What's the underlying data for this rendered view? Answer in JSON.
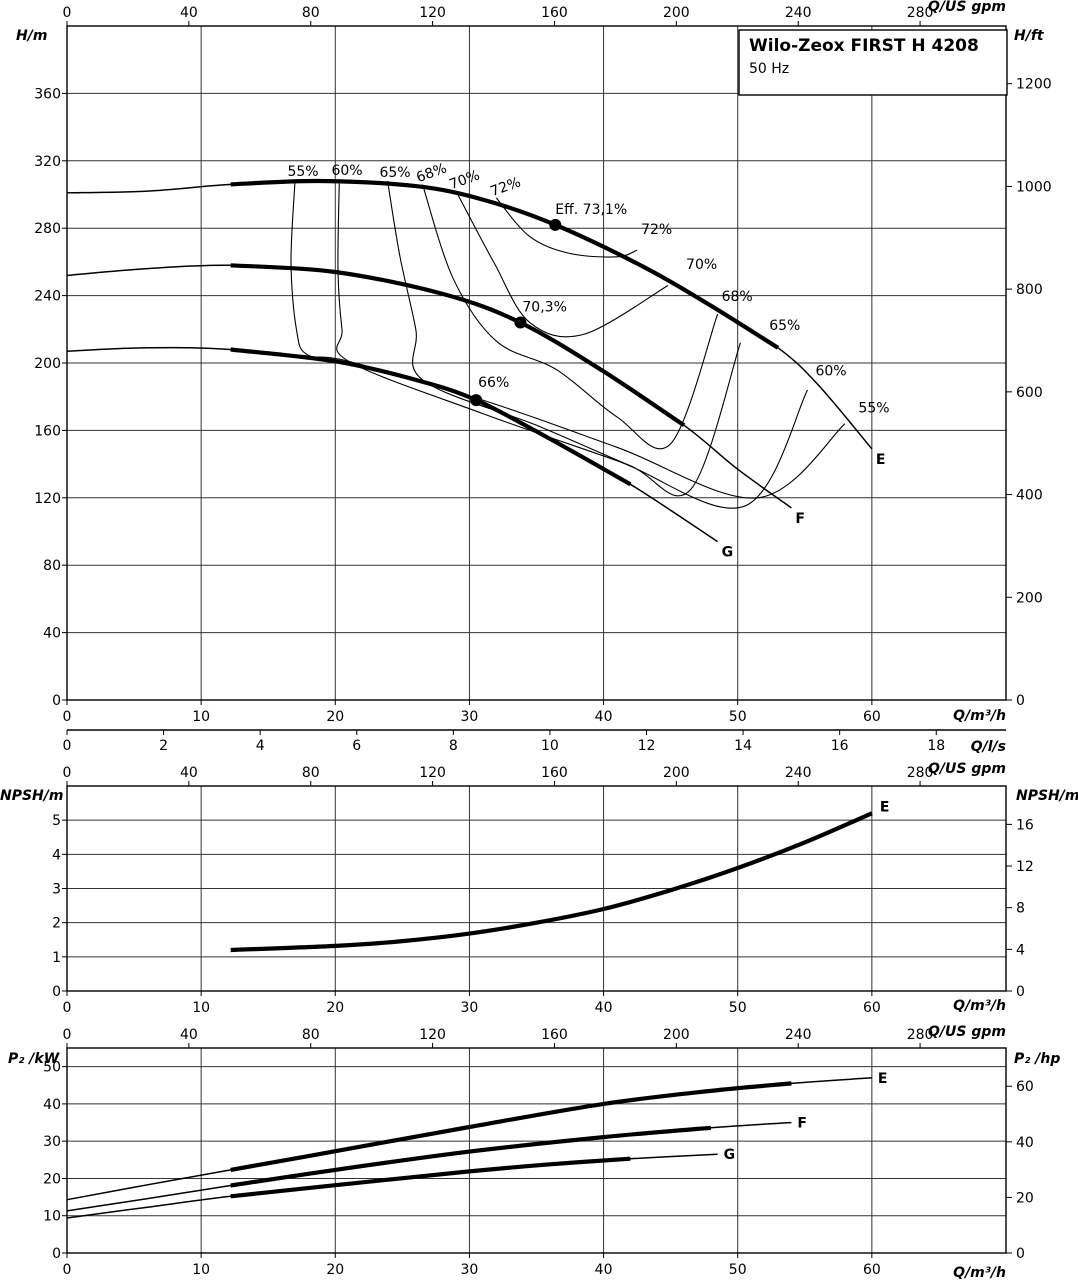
{
  "title": "Wilo-Zeox FIRST H 4208",
  "subtitle": "50 Hz",
  "axes": {
    "q_m3h": "Q/m³/h",
    "q_gpm": "Q/US gpm",
    "q_ls": "Q/l/s",
    "h_m": "H/m",
    "h_ft": "H/ft",
    "npsh_m": "NPSH/m",
    "npsh_ft": "NPSH/m",
    "p2_kw": "P₂ /kW",
    "p2_hp": "P₂ /hp"
  },
  "chart_data": [
    {
      "type": "line",
      "name": "head",
      "xlabel": "Q/m³/h",
      "ylabel": "H/m",
      "xlim": [
        0,
        70
      ],
      "ylim": [
        0,
        400
      ],
      "x_ticks": [
        0,
        10,
        20,
        30,
        40,
        50,
        60
      ],
      "y_ticks": [
        0,
        40,
        80,
        120,
        160,
        200,
        240,
        280,
        320,
        360
      ],
      "top_axis": {
        "label": "Q/US gpm",
        "ticks": [
          0,
          40,
          80,
          120,
          160,
          200,
          240,
          280
        ]
      },
      "bottom2_axis": {
        "label": "Q/l/s",
        "ticks": [
          0,
          2,
          4,
          6,
          8,
          10,
          12,
          14,
          16,
          18
        ]
      },
      "right_axis": {
        "label": "H/ft",
        "ticks": [
          0,
          200,
          400,
          600,
          800,
          1000,
          1200
        ]
      },
      "grid": true,
      "series": [
        {
          "name": "E",
          "x": [
            0,
            6,
            12.2,
            18.8,
            26,
            31,
            36.4,
            43,
            48,
            53,
            56,
            60
          ],
          "y": [
            301,
            302,
            306,
            308,
            305,
            297,
            282,
            257,
            234,
            209,
            187,
            149
          ]
        },
        {
          "name": "F",
          "x": [
            0,
            6,
            12.2,
            20,
            28,
            33.8,
            40,
            46,
            50,
            54
          ],
          "y": [
            252,
            256,
            258,
            254,
            241,
            224,
            195,
            163,
            137,
            114
          ]
        },
        {
          "name": "G",
          "x": [
            0,
            6,
            12.2,
            20,
            26,
            30.5,
            36,
            42,
            48.5
          ],
          "y": [
            207,
            209,
            208,
            201,
            190,
            178,
            155,
            128,
            94
          ]
        }
      ],
      "efficiency_lines": [
        {
          "label": "55%",
          "x": [
            17,
            16.7,
            17.1,
            17.9,
            21,
            31,
            41,
            51.5,
            58
          ],
          "y": [
            308,
            260,
            220,
            205,
            201,
            178,
            150,
            120,
            164
          ]
        },
        {
          "label": "60%",
          "x": [
            20.3,
            20.2,
            20.5,
            21,
            31,
            41,
            50.5,
            55.2
          ],
          "y": [
            308,
            255,
            220,
            201,
            170,
            142,
            115,
            184
          ]
        },
        {
          "label": "65%",
          "x": [
            23.9,
            24.8,
            26,
            26.5,
            35,
            42,
            46.5,
            50.2
          ],
          "y": [
            308,
            264,
            220,
            190,
            163,
            139,
            125,
            212
          ]
        },
        {
          "label": "68%",
          "x": [
            26.5,
            28.8,
            32,
            36.5,
            41,
            45,
            48.5
          ],
          "y": [
            306,
            250,
            213,
            196,
            168,
            152,
            229
          ]
        },
        {
          "label": "70%",
          "x": [
            29,
            31.8,
            34.5,
            38.5,
            44.8
          ],
          "y": [
            302,
            260,
            224,
            217,
            246
          ]
        },
        {
          "label": "72%",
          "x": [
            32,
            34.5,
            37.5,
            41,
            42.5
          ],
          "y": [
            298,
            275,
            265,
            263,
            267
          ]
        }
      ],
      "annotations": [
        {
          "text": "Eff. 73,1%",
          "x": 36.4,
          "y": 282
        },
        {
          "text": "72%",
          "x": 42.5,
          "y": 267
        },
        {
          "text": "70%",
          "x": 46,
          "y": 247
        },
        {
          "text": "68%",
          "x": 48.5,
          "y": 229
        },
        {
          "text": "65%",
          "x": 52.2,
          "y": 212
        },
        {
          "text": "60%",
          "x": 55.5,
          "y": 185
        },
        {
          "text": "55%",
          "x": 58.7,
          "y": 163
        },
        {
          "text": "70,3%",
          "x": 33.8,
          "y": 224
        },
        {
          "text": "66%",
          "x": 30.5,
          "y": 178
        }
      ],
      "op_points": [
        {
          "x": 36.4,
          "y": 282
        },
        {
          "x": 33.8,
          "y": 224
        },
        {
          "x": 30.5,
          "y": 178
        }
      ],
      "top_labels": [
        "55%",
        "60%",
        "65%",
        "68%",
        "70%",
        "72%"
      ]
    },
    {
      "type": "line",
      "name": "npsh",
      "xlabel": "Q/m³/h",
      "ylabel": "NPSH/m",
      "xlim": [
        0,
        70
      ],
      "ylim": [
        0,
        6
      ],
      "x_ticks": [
        0,
        10,
        20,
        30,
        40,
        50,
        60
      ],
      "y_ticks": [
        0,
        1,
        2,
        3,
        4,
        5
      ],
      "top_axis": {
        "label": "Q/US gpm",
        "ticks": [
          0,
          40,
          80,
          120,
          160,
          200,
          240,
          280
        ]
      },
      "right_axis": {
        "label": "NPSH/m",
        "ticks": [
          0,
          4,
          8,
          12,
          16
        ]
      },
      "grid": true,
      "series": [
        {
          "name": "E",
          "x": [
            12.2,
            20,
            25,
            30,
            35,
            40,
            45,
            50,
            55,
            60
          ],
          "y": [
            1.2,
            1.32,
            1.46,
            1.68,
            2.0,
            2.4,
            2.95,
            3.6,
            4.35,
            5.2
          ]
        }
      ]
    },
    {
      "type": "line",
      "name": "power",
      "xlabel": "Q/m³/h",
      "ylabel": "P₂ /kW",
      "xlim": [
        0,
        70
      ],
      "ylim": [
        0,
        55
      ],
      "x_ticks": [
        0,
        10,
        20,
        30,
        40,
        50,
        60
      ],
      "y_ticks": [
        0,
        10,
        20,
        30,
        40,
        50
      ],
      "top_axis": {
        "label": "Q/US gpm",
        "ticks": [
          0,
          40,
          80,
          120,
          160,
          200,
          240,
          280
        ]
      },
      "right_axis": {
        "label": "P₂ /hp",
        "ticks": [
          0,
          20,
          40,
          60
        ]
      },
      "grid": true,
      "series": [
        {
          "name": "E",
          "x": [
            0,
            6,
            12.2,
            20,
            30,
            40,
            48,
            54,
            60
          ],
          "y": [
            14.3,
            18.3,
            22.3,
            27.3,
            33.8,
            40.0,
            43.5,
            45.5,
            47.0
          ]
        },
        {
          "name": "F",
          "x": [
            0,
            6,
            12.2,
            20,
            30,
            40,
            48,
            54
          ],
          "y": [
            11.3,
            14.6,
            18.1,
            22.3,
            27.2,
            31.1,
            33.6,
            35.0
          ]
        },
        {
          "name": "G",
          "x": [
            0,
            6,
            12.2,
            20,
            30,
            36,
            42,
            48.5
          ],
          "y": [
            9.4,
            12.3,
            15.2,
            18.2,
            21.9,
            23.8,
            25.3,
            26.5
          ]
        }
      ]
    }
  ]
}
